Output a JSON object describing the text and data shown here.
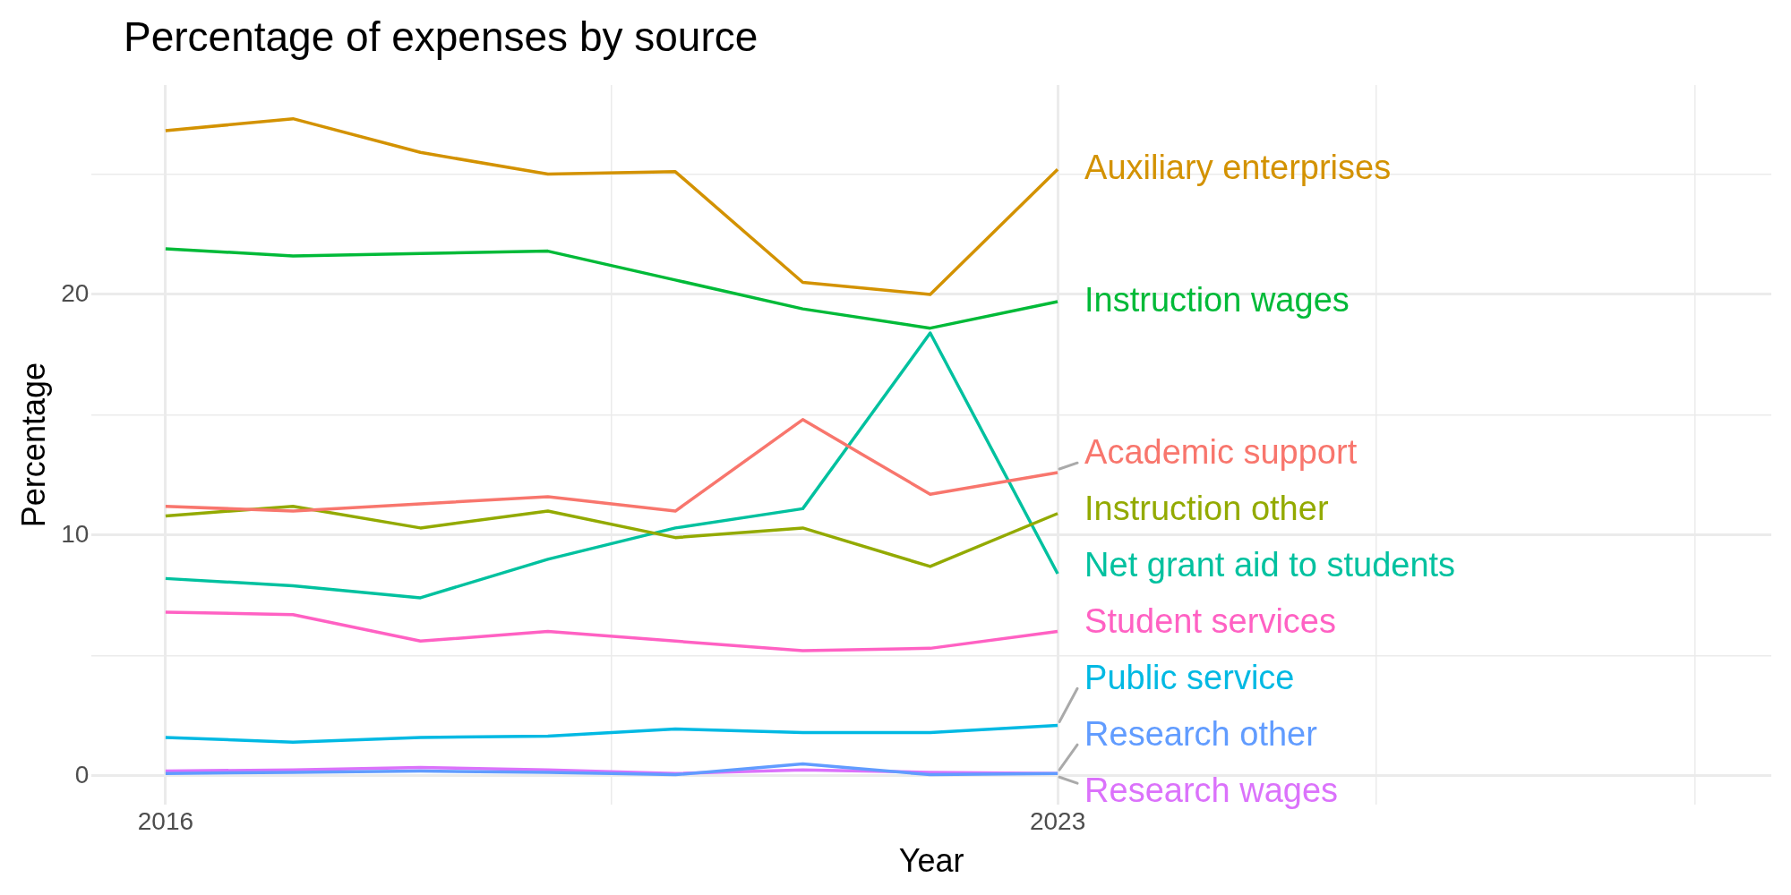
{
  "chart_data": {
    "type": "line",
    "title": "Percentage of expenses by source",
    "xlabel": "Year",
    "ylabel": "Percentage",
    "x": [
      2016,
      2017,
      2018,
      2019,
      2020,
      2021,
      2022,
      2023
    ],
    "xlim": [
      2015.42,
      2028.6
    ],
    "xticks": [
      2016,
      {
        "value": 2019.5,
        "label": null
      },
      2023,
      {
        "value": 2025.5,
        "label": null
      },
      {
        "value": 2028,
        "label": null
      }
    ],
    "ylim": [
      -1.2,
      28.7
    ],
    "yticks": [
      0,
      {
        "value": 5,
        "label": null
      },
      10,
      {
        "value": 15,
        "label": null
      },
      20,
      {
        "value": 25,
        "label": null
      }
    ],
    "grid": true,
    "legend": false,
    "marker": "none",
    "line_style": "solid",
    "series": [
      {
        "name": "Academic support",
        "color": "#f8766d",
        "values": [
          11.2,
          11.0,
          11.3,
          11.6,
          11.0,
          14.8,
          11.7,
          12.6
        ]
      },
      {
        "name": "Auxiliary enterprises",
        "color": "#d39200",
        "values": [
          26.8,
          27.3,
          25.9,
          25.0,
          25.1,
          20.5,
          20.0,
          25.2
        ]
      },
      {
        "name": "Instruction other",
        "color": "#93aa00",
        "values": [
          10.8,
          11.2,
          10.3,
          11.0,
          9.9,
          10.3,
          8.7,
          10.9
        ]
      },
      {
        "name": "Instruction wages",
        "color": "#00ba38",
        "values": [
          21.9,
          21.6,
          21.7,
          21.8,
          20.6,
          19.4,
          18.6,
          19.7
        ]
      },
      {
        "name": "Net grant aid to students",
        "color": "#00c19f",
        "values": [
          8.2,
          7.9,
          7.4,
          9.0,
          10.3,
          11.1,
          18.4,
          8.4
        ]
      },
      {
        "name": "Public service",
        "color": "#00b9e3",
        "values": [
          1.6,
          1.4,
          1.6,
          1.65,
          1.95,
          1.8,
          1.8,
          2.1
        ]
      },
      {
        "name": "Research other",
        "color": "#619cff",
        "values": [
          0.1,
          0.15,
          0.2,
          0.15,
          0.05,
          0.5,
          0.05,
          0.1
        ]
      },
      {
        "name": "Research wages",
        "color": "#db72fb",
        "values": [
          0.2,
          0.25,
          0.35,
          0.25,
          0.1,
          0.25,
          0.15,
          0.1
        ]
      },
      {
        "name": "Student services",
        "color": "#ff61c3",
        "values": [
          6.8,
          6.7,
          5.6,
          6.0,
          5.6,
          5.2,
          5.3,
          6.0
        ]
      }
    ]
  }
}
